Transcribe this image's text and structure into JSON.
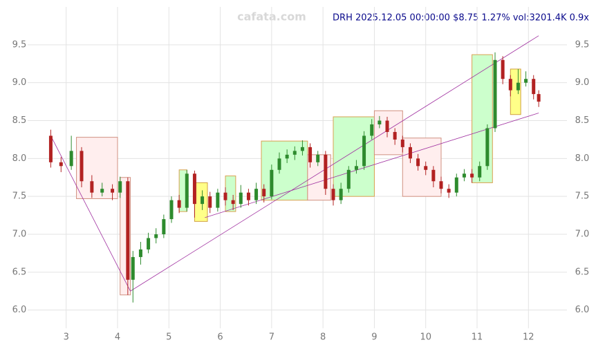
{
  "chart_data": {
    "type": "candlestick",
    "title": "DRH 2025.12.05 00:00:00 $8.75 1.27% vol:3201.4K 0.9x",
    "watermark": "cafata.com",
    "xlim": [
      2.25,
      12.75
    ],
    "ylim": [
      5.76,
      10.0
    ],
    "xticks": [
      3,
      4,
      5,
      6,
      7,
      8,
      9,
      10,
      11,
      12
    ],
    "yticks": [
      {
        "value": 6,
        "label": "6.0"
      },
      6.5,
      {
        "value": 7,
        "label": "7.0"
      },
      7.5,
      {
        "value": 8,
        "label": "8.0"
      },
      8.5,
      {
        "value": 9,
        "label": "9.0"
      },
      9.5
    ],
    "grid": true,
    "up_color": "#2e8b2e",
    "down_color": "#b22222",
    "candles": {
      "x": [
        2.7,
        2.9,
        3.1,
        3.3,
        3.5,
        3.7,
        3.9,
        4.05,
        4.2,
        4.3,
        4.45,
        4.6,
        4.75,
        4.9,
        5.05,
        5.2,
        5.35,
        5.5,
        5.65,
        5.8,
        5.95,
        6.1,
        6.25,
        6.4,
        6.55,
        6.7,
        6.85,
        7.0,
        7.15,
        7.3,
        7.45,
        7.6,
        7.75,
        7.9,
        8.05,
        8.2,
        8.35,
        8.5,
        8.65,
        8.8,
        8.95,
        9.1,
        9.25,
        9.4,
        9.55,
        9.7,
        9.85,
        10.0,
        10.15,
        10.3,
        10.45,
        10.6,
        10.75,
        10.9,
        11.05,
        11.2,
        11.35,
        11.5,
        11.65,
        11.8,
        11.95,
        12.1,
        12.2
      ],
      "open": [
        8.3,
        7.95,
        7.9,
        8.1,
        7.7,
        7.55,
        7.6,
        7.55,
        7.7,
        6.4,
        6.7,
        6.8,
        6.95,
        7.0,
        7.2,
        7.45,
        7.35,
        7.8,
        7.4,
        7.5,
        7.35,
        7.55,
        7.45,
        7.4,
        7.55,
        7.45,
        7.6,
        7.5,
        7.85,
        8.0,
        8.05,
        8.1,
        8.15,
        7.95,
        8.05,
        7.6,
        7.45,
        7.6,
        7.85,
        7.9,
        8.3,
        8.45,
        8.5,
        8.35,
        8.25,
        8.15,
        8.0,
        7.9,
        7.85,
        7.7,
        7.6,
        7.55,
        7.75,
        7.8,
        7.75,
        7.9,
        8.4,
        9.3,
        9.05,
        8.9,
        9.0,
        9.05,
        8.85
      ],
      "high": [
        8.38,
        8.02,
        8.3,
        8.15,
        7.78,
        7.68,
        7.66,
        7.76,
        7.75,
        6.78,
        6.9,
        7.02,
        7.08,
        7.26,
        7.5,
        7.52,
        7.85,
        7.84,
        7.58,
        7.56,
        7.6,
        7.62,
        7.52,
        7.65,
        7.6,
        7.68,
        7.66,
        7.92,
        8.08,
        8.12,
        8.16,
        8.24,
        8.2,
        8.1,
        8.1,
        7.66,
        7.68,
        7.9,
        7.98,
        8.36,
        8.52,
        8.56,
        8.55,
        8.4,
        8.3,
        8.2,
        8.06,
        7.96,
        7.9,
        7.76,
        7.66,
        7.8,
        7.86,
        7.86,
        7.96,
        8.45,
        9.4,
        9.35,
        9.1,
        9.18,
        9.15,
        9.1,
        8.9
      ],
      "low": [
        7.88,
        7.82,
        7.85,
        7.62,
        7.48,
        7.5,
        7.45,
        7.48,
        6.2,
        6.1,
        6.6,
        6.75,
        6.88,
        6.95,
        7.15,
        7.28,
        7.3,
        7.22,
        7.32,
        7.28,
        7.3,
        7.38,
        7.32,
        7.35,
        7.38,
        7.4,
        7.42,
        7.46,
        7.8,
        7.94,
        7.98,
        8.04,
        7.88,
        7.9,
        7.52,
        7.38,
        7.4,
        7.55,
        7.8,
        7.85,
        8.25,
        8.4,
        8.28,
        8.18,
        8.08,
        7.94,
        7.84,
        7.78,
        7.62,
        7.54,
        7.48,
        7.5,
        7.7,
        7.68,
        7.7,
        7.85,
        8.35,
        8.98,
        8.82,
        8.85,
        8.95,
        8.78,
        8.68
      ],
      "close": [
        7.95,
        7.9,
        8.1,
        7.7,
        7.55,
        7.6,
        7.55,
        7.7,
        6.4,
        6.7,
        6.8,
        6.95,
        7.0,
        7.2,
        7.45,
        7.35,
        7.8,
        7.4,
        7.5,
        7.35,
        7.55,
        7.45,
        7.4,
        7.55,
        7.45,
        7.6,
        7.5,
        7.85,
        8.0,
        8.05,
        8.1,
        8.15,
        7.95,
        8.05,
        7.6,
        7.45,
        7.6,
        7.85,
        7.9,
        8.3,
        8.45,
        8.5,
        8.35,
        8.25,
        8.15,
        8.0,
        7.9,
        7.85,
        7.7,
        7.6,
        7.55,
        7.75,
        7.8,
        7.75,
        7.9,
        8.4,
        9.3,
        9.05,
        8.9,
        9.0,
        9.05,
        8.85,
        8.75
      ]
    },
    "boxes": [
      {
        "x0": 3.2,
        "x1": 4.0,
        "y0": 7.47,
        "y1": 8.28,
        "color": "#ffeeee"
      },
      {
        "x0": 4.05,
        "x1": 4.25,
        "y0": 6.2,
        "y1": 7.75,
        "color": "#ffeeee"
      },
      {
        "x0": 5.2,
        "x1": 5.35,
        "y0": 7.3,
        "y1": 7.85,
        "color": "#ccffcc"
      },
      {
        "x0": 5.5,
        "x1": 5.75,
        "y0": 7.17,
        "y1": 7.68,
        "color": "#ffff88"
      },
      {
        "x0": 6.1,
        "x1": 6.3,
        "y0": 7.3,
        "y1": 7.77,
        "color": "#ccffcc"
      },
      {
        "x0": 6.8,
        "x1": 7.7,
        "y0": 7.45,
        "y1": 8.23,
        "color": "#ccffcc"
      },
      {
        "x0": 7.7,
        "x1": 8.15,
        "y0": 7.45,
        "y1": 8.05,
        "color": "#ffeeee"
      },
      {
        "x0": 8.2,
        "x1": 9.0,
        "y0": 7.5,
        "y1": 8.55,
        "color": "#ccffcc"
      },
      {
        "x0": 9.0,
        "x1": 9.55,
        "y0": 8.05,
        "y1": 8.63,
        "color": "#ffeeee"
      },
      {
        "x0": 9.55,
        "x1": 10.3,
        "y0": 7.5,
        "y1": 8.27,
        "color": "#ffeeee"
      },
      {
        "x0": 10.9,
        "x1": 11.3,
        "y0": 7.68,
        "y1": 9.37,
        "color": "#ccffcc"
      },
      {
        "x0": 11.65,
        "x1": 11.85,
        "y0": 8.58,
        "y1": 9.18,
        "color": "#ffff88"
      }
    ],
    "trend_lines": [
      {
        "x0": 2.7,
        "y0": 8.3,
        "x1": 4.25,
        "y1": 6.25
      },
      {
        "x0": 4.25,
        "y0": 6.25,
        "x1": 12.2,
        "y1": 9.62
      },
      {
        "x0": 5.7,
        "y0": 7.22,
        "x1": 12.2,
        "y1": 8.6
      }
    ],
    "trend_color": "#a030a0"
  }
}
